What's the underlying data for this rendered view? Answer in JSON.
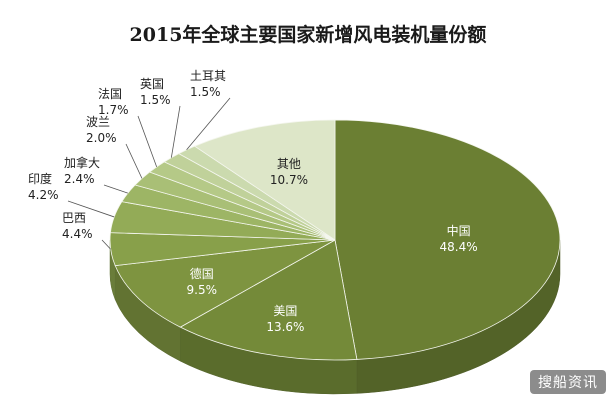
{
  "chart_data": {
    "type": "pie",
    "title": "2015年全球主要国家新增风电装机量份额",
    "slices": [
      {
        "label": "中国",
        "value": 48.4,
        "text": "48.4%",
        "color": "#6b7f33"
      },
      {
        "label": "美国",
        "value": 13.6,
        "text": "13.6%",
        "color": "#748a39"
      },
      {
        "label": "德国",
        "value": 9.5,
        "text": "9.5%",
        "color": "#7e9440"
      },
      {
        "label": "巴西",
        "value": 4.4,
        "text": "4.4%",
        "color": "#88a04a"
      },
      {
        "label": "印度",
        "value": 4.2,
        "text": "4.2%",
        "color": "#93ab57"
      },
      {
        "label": "加拿大",
        "value": 2.4,
        "text": "2.4%",
        "color": "#9db565"
      },
      {
        "label": "波兰",
        "value": 2.0,
        "text": "2.0%",
        "color": "#a9bf76"
      },
      {
        "label": "法国",
        "value": 1.7,
        "text": "1.7%",
        "color": "#b5c987"
      },
      {
        "label": "英国",
        "value": 1.5,
        "text": "1.5%",
        "color": "#c0d19a"
      },
      {
        "label": "土耳其",
        "value": 1.5,
        "text": "1.5%",
        "color": "#cbdaae"
      },
      {
        "label": "其他",
        "value": 10.7,
        "text": "10.7%",
        "color": "#dde6c8"
      }
    ],
    "legend": "none",
    "style": "3d"
  },
  "watermark": "搜船资讯"
}
